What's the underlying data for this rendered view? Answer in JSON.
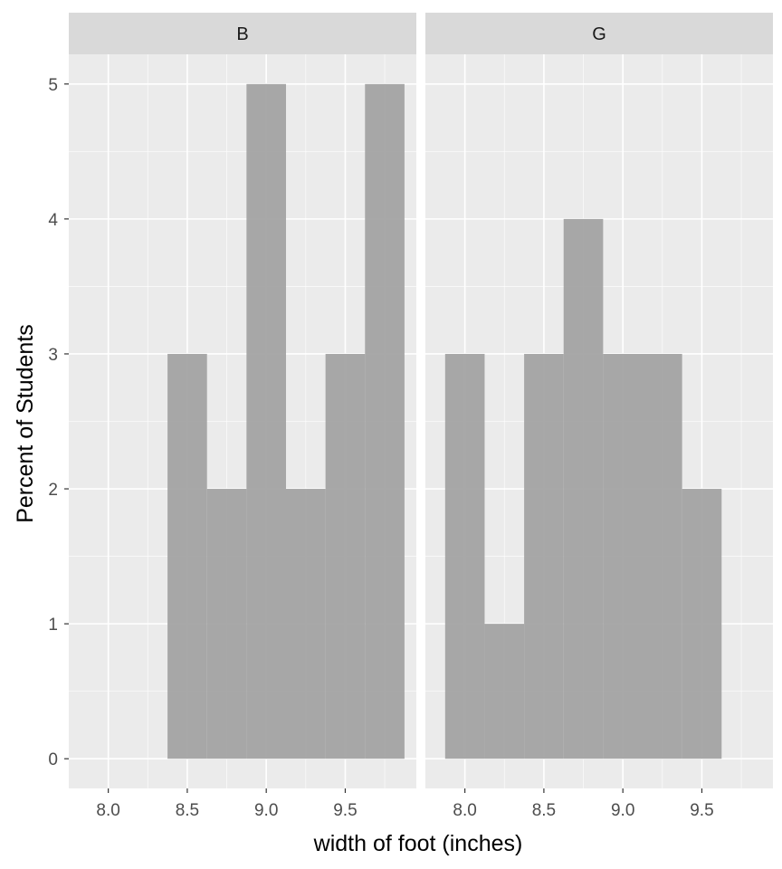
{
  "chart_data": {
    "type": "bar",
    "subtype": "faceted-histogram",
    "xlabel": "width of foot (inches)",
    "ylabel": "Percent of Students",
    "xlim": [
      7.75,
      9.95
    ],
    "ylim": [
      -0.22,
      5.22
    ],
    "x_ticks": [
      8.0,
      8.5,
      9.0,
      9.5
    ],
    "x_tick_labels": [
      "8.0",
      "8.5",
      "9.0",
      "9.5"
    ],
    "y_ticks": [
      0,
      1,
      2,
      3,
      4,
      5
    ],
    "y_tick_labels": [
      "0",
      "1",
      "2",
      "3",
      "4",
      "5"
    ],
    "grid": true,
    "legend": "none",
    "bar_color": "#a3a3a3",
    "panel_background": "#ebebeb",
    "strip_background": "#d9d9d9",
    "facets": [
      {
        "label": "B",
        "bins": [
          {
            "x0": 8.375,
            "x1": 8.625,
            "y": 3
          },
          {
            "x0": 8.625,
            "x1": 8.875,
            "y": 2
          },
          {
            "x0": 8.875,
            "x1": 9.125,
            "y": 5
          },
          {
            "x0": 9.125,
            "x1": 9.375,
            "y": 2
          },
          {
            "x0": 9.375,
            "x1": 9.625,
            "y": 3
          },
          {
            "x0": 9.625,
            "x1": 9.875,
            "y": 5
          }
        ]
      },
      {
        "label": "G",
        "bins": [
          {
            "x0": 7.875,
            "x1": 8.125,
            "y": 3
          },
          {
            "x0": 8.125,
            "x1": 8.375,
            "y": 1
          },
          {
            "x0": 8.375,
            "x1": 8.625,
            "y": 3
          },
          {
            "x0": 8.625,
            "x1": 8.875,
            "y": 4
          },
          {
            "x0": 8.875,
            "x1": 9.125,
            "y": 3
          },
          {
            "x0": 9.125,
            "x1": 9.375,
            "y": 3
          },
          {
            "x0": 9.375,
            "x1": 9.625,
            "y": 2
          }
        ]
      }
    ]
  }
}
